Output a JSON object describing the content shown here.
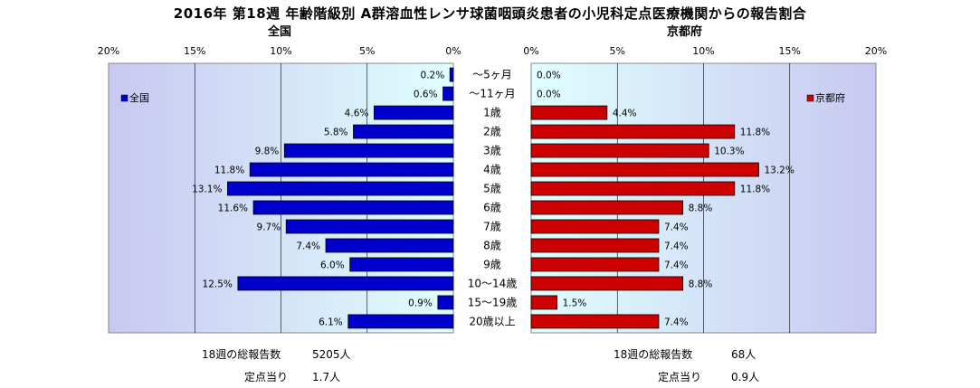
{
  "title": "2016年 第18週 年齢階級別 A群溶血性レンサ球菌咽頭炎患者の小児科定点医療機関からの報告割合",
  "left_panel_title": "全国",
  "right_panel_title": "京都府",
  "footer": {
    "left_total_label": "18週の総報告数",
    "left_total_value": "5205人",
    "left_per_label": "定点当り",
    "left_per_value": "1.7人",
    "right_total_label": "18週の総報告数",
    "right_total_value": "68人",
    "right_per_label": "定点当り",
    "right_per_value": "0.9人"
  },
  "colors": {
    "national_bar": "#0000cc",
    "kyoto_bar": "#cc0000",
    "plot_bg_left": "#c8c8f0",
    "plot_bg_right": "#c8c8f0",
    "plot_bg_center": "#e0ffff"
  },
  "chart_data": {
    "type": "bar",
    "orientation": "horizontal-butterfly",
    "categories": [
      "～5ヶ月",
      "～11ヶ月",
      "1歳",
      "2歳",
      "3歳",
      "4歳",
      "5歳",
      "6歳",
      "7歳",
      "8歳",
      "9歳",
      "10～14歳",
      "15～19歳",
      "20歳以上"
    ],
    "series": [
      {
        "name": "全国",
        "values": [
          0.2,
          0.6,
          4.6,
          5.8,
          9.8,
          11.8,
          13.1,
          11.6,
          9.7,
          7.4,
          6.0,
          12.5,
          0.9,
          6.1
        ],
        "labels": [
          "0.2%",
          "0.6%",
          "4.6%",
          "5.8%",
          "9.8%",
          "11.8%",
          "13.1%",
          "11.6%",
          "9.7%",
          "7.4%",
          "6.0%",
          "12.5%",
          "0.9%",
          "6.1%"
        ]
      },
      {
        "name": "京都府",
        "values": [
          0.0,
          0.0,
          4.4,
          11.8,
          10.3,
          13.2,
          11.8,
          8.8,
          7.4,
          7.4,
          7.4,
          8.8,
          1.5,
          7.4
        ],
        "labels": [
          "0.0%",
          "0.0%",
          "4.4%",
          "11.8%",
          "10.3%",
          "13.2%",
          "11.8%",
          "8.8%",
          "7.4%",
          "7.4%",
          "7.4%",
          "8.8%",
          "1.5%",
          "7.4%"
        ]
      }
    ],
    "left_ticks": [
      "20%",
      "15%",
      "10%",
      "5%",
      "0%"
    ],
    "right_ticks": [
      "0%",
      "5%",
      "10%",
      "15%",
      "20%"
    ],
    "xlim": [
      0,
      20
    ],
    "grid": true,
    "legend_left": "全国",
    "legend_right": "京都府",
    "legend_placement": "top-left / top-right"
  }
}
